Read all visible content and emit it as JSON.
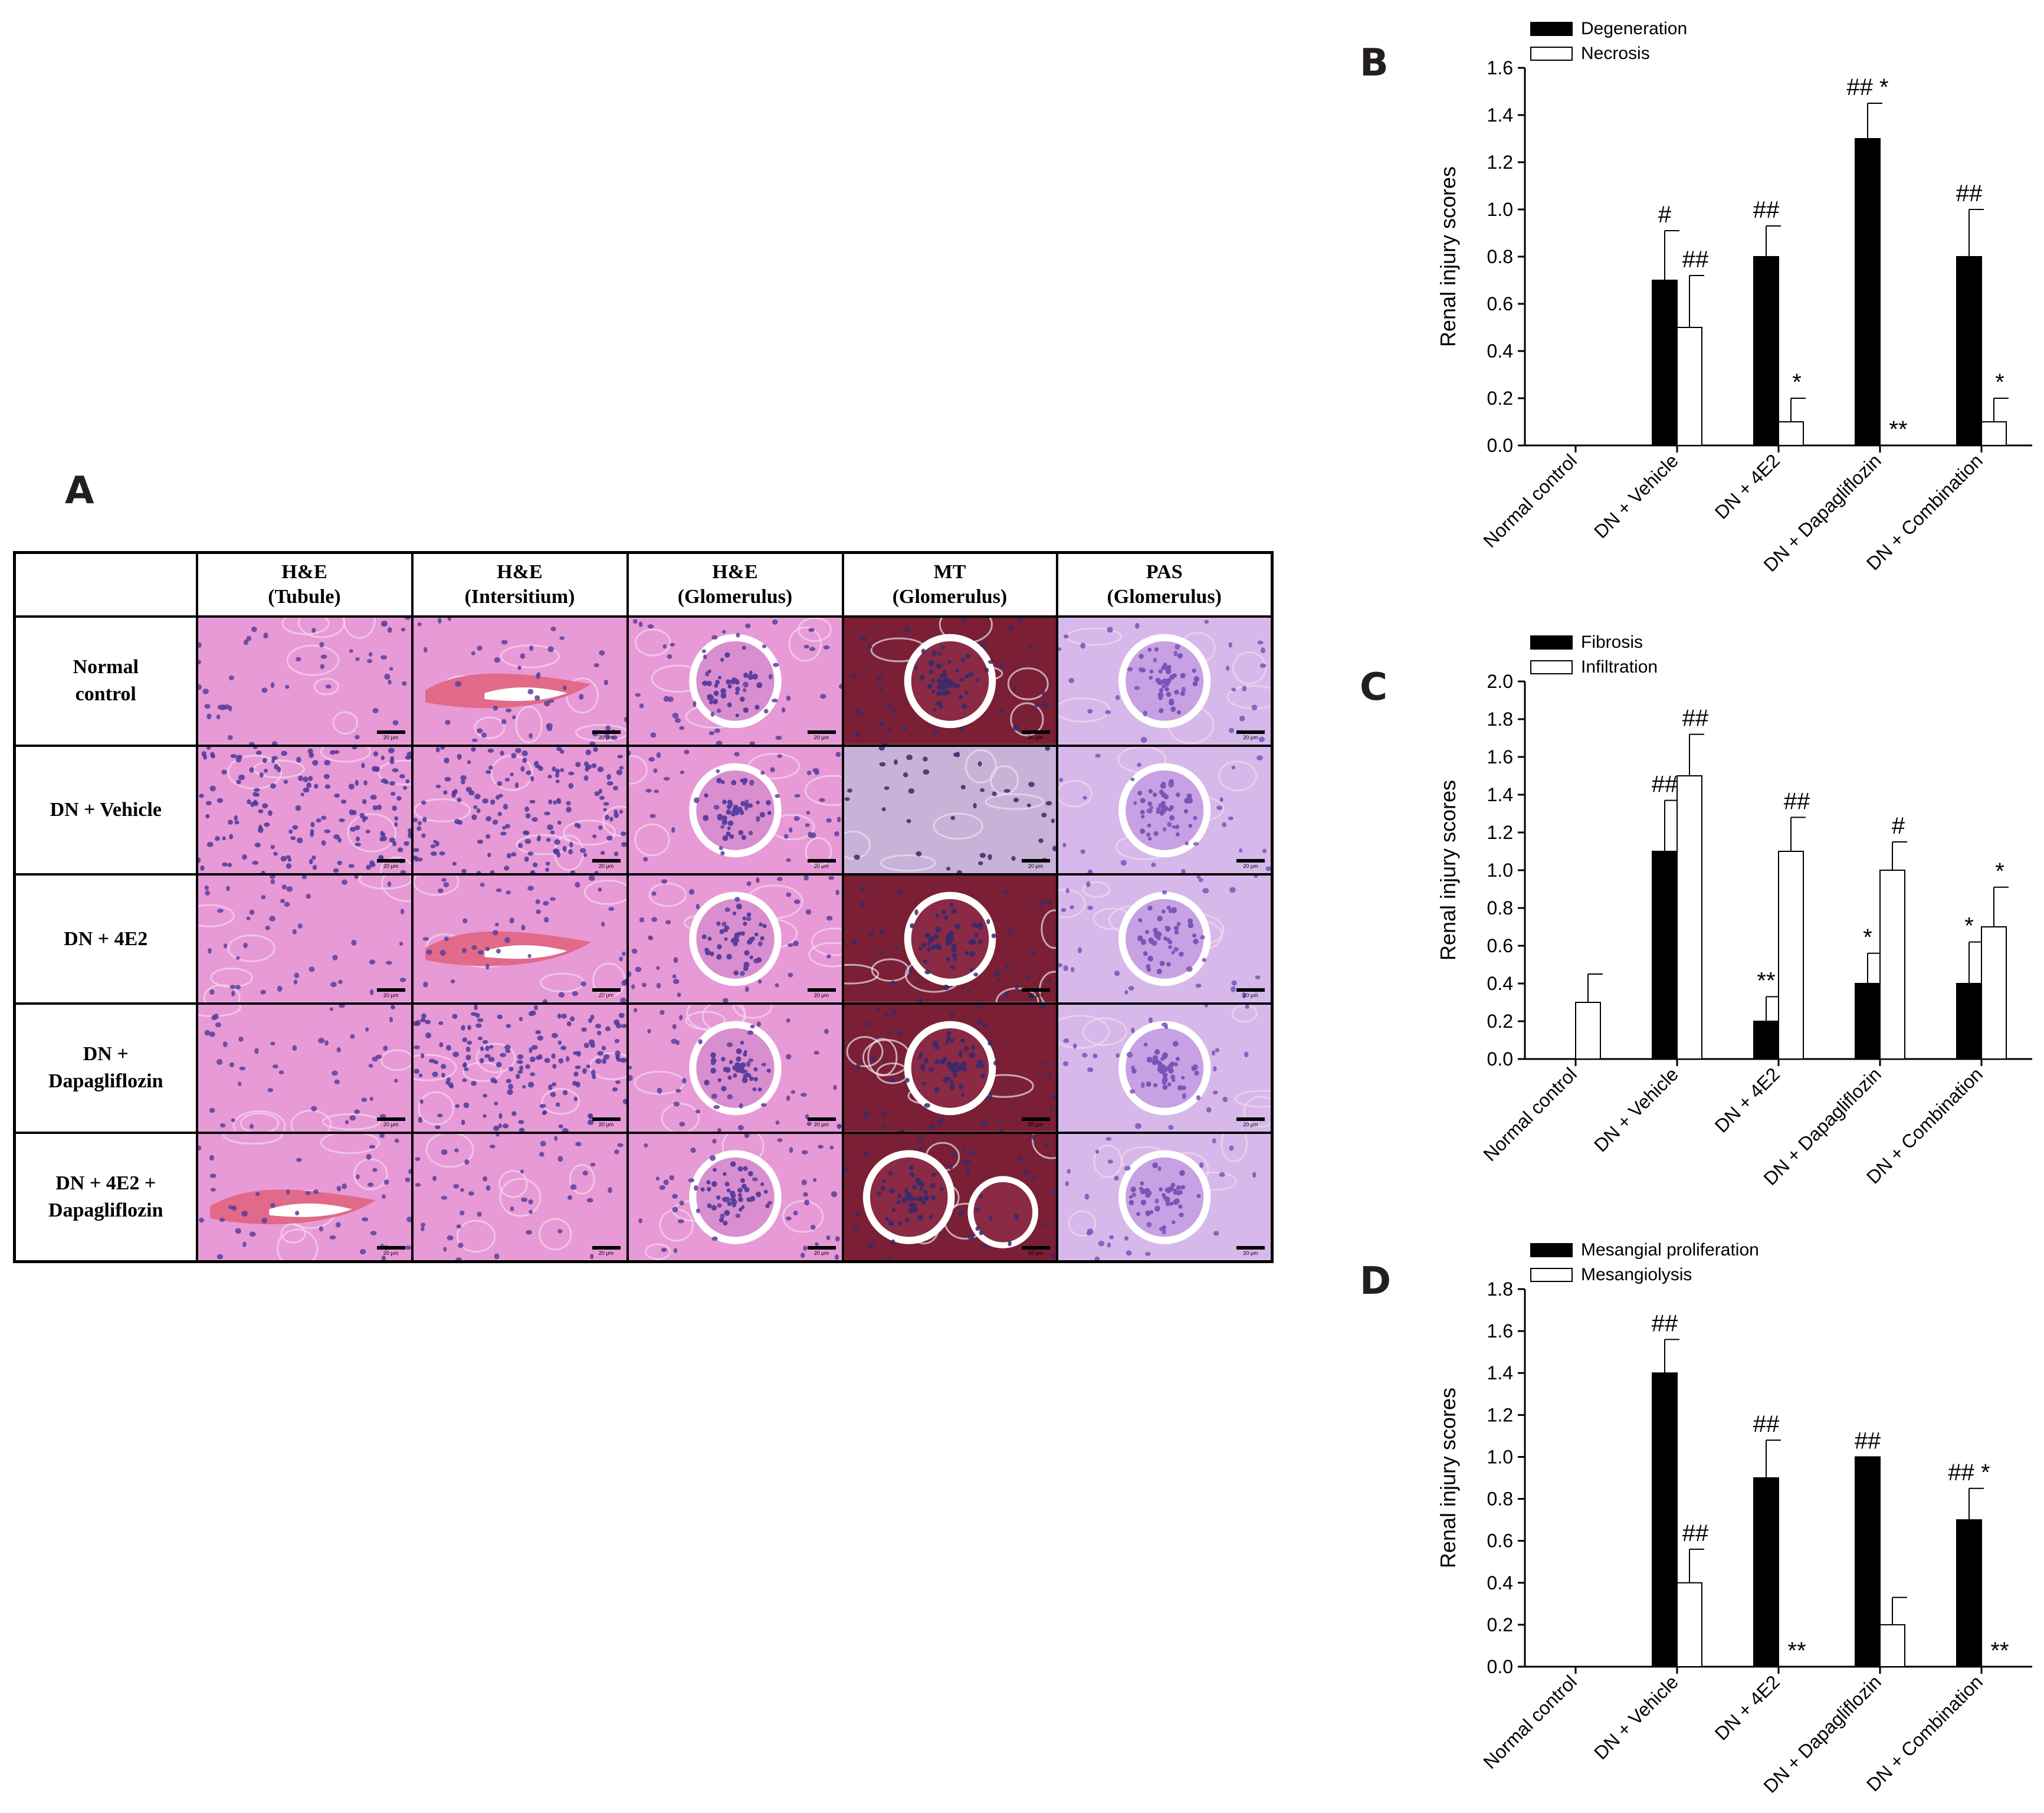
{
  "panel_labels": {
    "a": "A",
    "b": "B",
    "c": "C",
    "d": "D"
  },
  "figure_a": {
    "column_headers": [
      {
        "line1": "H&E",
        "line2": "(Tubule)"
      },
      {
        "line1": "H&E",
        "line2": "(Intersitium)"
      },
      {
        "line1": "H&E",
        "line2": "(Glomerulus)"
      },
      {
        "line1": "MT",
        "line2": "(Glomerulus)"
      },
      {
        "line1": "PAS",
        "line2": "(Glomerulus)"
      }
    ],
    "row_labels": [
      "Normal\ncontrol",
      "DN + Vehicle",
      "DN + 4E2",
      "DN +\nDapagliflozin",
      "DN + 4E2  +\nDapagliflozin"
    ],
    "scale_bar_label": "20 μm",
    "stain_colors": {
      "he_background": "#e79ad6",
      "he_nuclei": "#5a3f9e",
      "he_dense_nuclei": "#4b3a9a",
      "mt_background": "#7a1f35",
      "mt_light": "#c9b2d8",
      "pas_background": "#d6b9ea",
      "pas_nuclei": "#7a55b8",
      "blood_red": "#e0607a"
    }
  },
  "chart_data": [
    {
      "id": "B",
      "type": "bar",
      "ylabel": "Renal injury scores",
      "ylim": [
        0,
        1.6
      ],
      "yticks": [
        "0.0",
        "0.2",
        "0.4",
        "0.6",
        "0.8",
        "1.0",
        "1.2",
        "1.4",
        "1.6"
      ],
      "categories": [
        "Normal control",
        "DN + Vehicle",
        "DN + 4E2",
        "DN + Dapagliflozin",
        "DN + Combination"
      ],
      "legend_position": "top-left",
      "series": [
        {
          "name": "Degeneration",
          "color": "#000000",
          "values": [
            0,
            0.7,
            0.8,
            1.3,
            0.8
          ],
          "errors": [
            0,
            0.21,
            0.13,
            0.15,
            0.2
          ],
          "annotations": [
            "",
            "#",
            "##",
            "## *",
            "##"
          ]
        },
        {
          "name": "Necrosis",
          "color": "#ffffff",
          "values": [
            0,
            0.5,
            0.1,
            0,
            0.1
          ],
          "errors": [
            0,
            0.22,
            0.1,
            0,
            0.1
          ],
          "annotations": [
            "",
            "##",
            "*",
            "**",
            "*"
          ]
        }
      ]
    },
    {
      "id": "C",
      "type": "bar",
      "ylabel": "Renal injury scores",
      "ylim": [
        0,
        2.0
      ],
      "yticks": [
        "0.0",
        "0.2",
        "0.4",
        "0.6",
        "0.8",
        "1.0",
        "1.2",
        "1.4",
        "1.6",
        "1.8",
        "2.0"
      ],
      "categories": [
        "Normal control",
        "DN + Vehicle",
        "DN + 4E2",
        "DN + Dapagliflozin",
        "DN + Combination"
      ],
      "legend_position": "top-left",
      "series": [
        {
          "name": "Fibrosis",
          "color": "#000000",
          "values": [
            0,
            1.1,
            0.2,
            0.4,
            0.4
          ],
          "errors": [
            0,
            0.27,
            0.13,
            0.16,
            0.22
          ],
          "annotations": [
            "",
            "##",
            "**",
            "*",
            "*"
          ]
        },
        {
          "name": "Infiltration",
          "color": "#ffffff",
          "values": [
            0.3,
            1.5,
            1.1,
            1.0,
            0.7
          ],
          "errors": [
            0.15,
            0.22,
            0.18,
            0.15,
            0.21
          ],
          "annotations": [
            "",
            "##",
            "##",
            "#",
            "*"
          ]
        }
      ]
    },
    {
      "id": "D",
      "type": "bar",
      "ylabel": "Renal injury scores",
      "ylim": [
        0,
        1.8
      ],
      "yticks": [
        "0.0",
        "0.2",
        "0.4",
        "0.6",
        "0.8",
        "1.0",
        "1.2",
        "1.4",
        "1.6",
        "1.8"
      ],
      "categories": [
        "Normal control",
        "DN + Vehicle",
        "DN + 4E2",
        "DN + Dapagliflozin",
        "DN + Combination"
      ],
      "legend_position": "top-left",
      "series": [
        {
          "name": "Mesangial proliferation",
          "color": "#000000",
          "values": [
            0,
            1.4,
            0.9,
            1.0,
            0.7
          ],
          "errors": [
            0,
            0.16,
            0.18,
            0,
            0.15
          ],
          "annotations": [
            "",
            "##",
            "##",
            "##",
            "## *"
          ]
        },
        {
          "name": "Mesangiolysis",
          "color": "#ffffff",
          "values": [
            0,
            0.4,
            0,
            0.2,
            0
          ],
          "errors": [
            0,
            0.16,
            0,
            0.13,
            0
          ],
          "annotations": [
            "",
            "##",
            "**",
            "",
            "**"
          ]
        }
      ]
    }
  ]
}
